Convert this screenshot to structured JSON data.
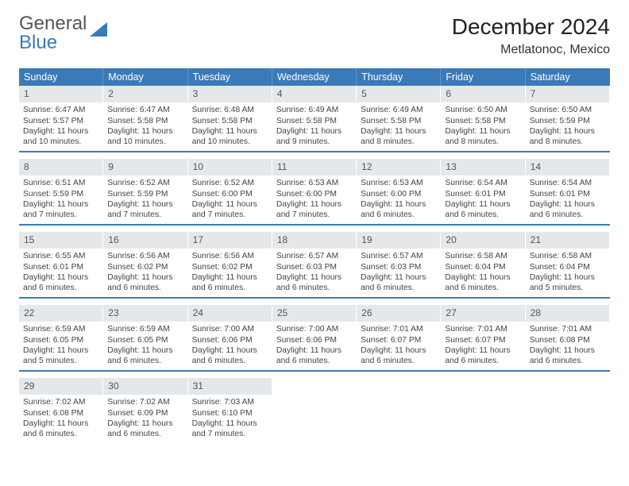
{
  "brand": {
    "line1": "General",
    "line2": "Blue"
  },
  "title": "December 2024",
  "location": "Metlatonoc, Mexico",
  "colors": {
    "header_bg": "#3a7ab8",
    "header_text": "#ffffff",
    "daynum_bg": "#e4e8eb",
    "border": "#3a7ab8",
    "body_text": "#444444"
  },
  "dow": [
    "Sunday",
    "Monday",
    "Tuesday",
    "Wednesday",
    "Thursday",
    "Friday",
    "Saturday"
  ],
  "layout": {
    "columns": 7,
    "rows": 5
  },
  "days": [
    {
      "n": "1",
      "sr": "6:47 AM",
      "ss": "5:57 PM",
      "dl": "11 hours and 10 minutes."
    },
    {
      "n": "2",
      "sr": "6:47 AM",
      "ss": "5:58 PM",
      "dl": "11 hours and 10 minutes."
    },
    {
      "n": "3",
      "sr": "6:48 AM",
      "ss": "5:58 PM",
      "dl": "11 hours and 10 minutes."
    },
    {
      "n": "4",
      "sr": "6:49 AM",
      "ss": "5:58 PM",
      "dl": "11 hours and 9 minutes."
    },
    {
      "n": "5",
      "sr": "6:49 AM",
      "ss": "5:58 PM",
      "dl": "11 hours and 8 minutes."
    },
    {
      "n": "6",
      "sr": "6:50 AM",
      "ss": "5:58 PM",
      "dl": "11 hours and 8 minutes."
    },
    {
      "n": "7",
      "sr": "6:50 AM",
      "ss": "5:59 PM",
      "dl": "11 hours and 8 minutes."
    },
    {
      "n": "8",
      "sr": "6:51 AM",
      "ss": "5:59 PM",
      "dl": "11 hours and 7 minutes."
    },
    {
      "n": "9",
      "sr": "6:52 AM",
      "ss": "5:59 PM",
      "dl": "11 hours and 7 minutes."
    },
    {
      "n": "10",
      "sr": "6:52 AM",
      "ss": "6:00 PM",
      "dl": "11 hours and 7 minutes."
    },
    {
      "n": "11",
      "sr": "6:53 AM",
      "ss": "6:00 PM",
      "dl": "11 hours and 7 minutes."
    },
    {
      "n": "12",
      "sr": "6:53 AM",
      "ss": "6:00 PM",
      "dl": "11 hours and 6 minutes."
    },
    {
      "n": "13",
      "sr": "6:54 AM",
      "ss": "6:01 PM",
      "dl": "11 hours and 6 minutes."
    },
    {
      "n": "14",
      "sr": "6:54 AM",
      "ss": "6:01 PM",
      "dl": "11 hours and 6 minutes."
    },
    {
      "n": "15",
      "sr": "6:55 AM",
      "ss": "6:01 PM",
      "dl": "11 hours and 6 minutes."
    },
    {
      "n": "16",
      "sr": "6:56 AM",
      "ss": "6:02 PM",
      "dl": "11 hours and 6 minutes."
    },
    {
      "n": "17",
      "sr": "6:56 AM",
      "ss": "6:02 PM",
      "dl": "11 hours and 6 minutes."
    },
    {
      "n": "18",
      "sr": "6:57 AM",
      "ss": "6:03 PM",
      "dl": "11 hours and 6 minutes."
    },
    {
      "n": "19",
      "sr": "6:57 AM",
      "ss": "6:03 PM",
      "dl": "11 hours and 6 minutes."
    },
    {
      "n": "20",
      "sr": "6:58 AM",
      "ss": "6:04 PM",
      "dl": "11 hours and 6 minutes."
    },
    {
      "n": "21",
      "sr": "6:58 AM",
      "ss": "6:04 PM",
      "dl": "11 hours and 5 minutes."
    },
    {
      "n": "22",
      "sr": "6:59 AM",
      "ss": "6:05 PM",
      "dl": "11 hours and 5 minutes."
    },
    {
      "n": "23",
      "sr": "6:59 AM",
      "ss": "6:05 PM",
      "dl": "11 hours and 6 minutes."
    },
    {
      "n": "24",
      "sr": "7:00 AM",
      "ss": "6:06 PM",
      "dl": "11 hours and 6 minutes."
    },
    {
      "n": "25",
      "sr": "7:00 AM",
      "ss": "6:06 PM",
      "dl": "11 hours and 6 minutes."
    },
    {
      "n": "26",
      "sr": "7:01 AM",
      "ss": "6:07 PM",
      "dl": "11 hours and 6 minutes."
    },
    {
      "n": "27",
      "sr": "7:01 AM",
      "ss": "6:07 PM",
      "dl": "11 hours and 6 minutes."
    },
    {
      "n": "28",
      "sr": "7:01 AM",
      "ss": "6:08 PM",
      "dl": "11 hours and 6 minutes."
    },
    {
      "n": "29",
      "sr": "7:02 AM",
      "ss": "6:08 PM",
      "dl": "11 hours and 6 minutes."
    },
    {
      "n": "30",
      "sr": "7:02 AM",
      "ss": "6:09 PM",
      "dl": "11 hours and 6 minutes."
    },
    {
      "n": "31",
      "sr": "7:03 AM",
      "ss": "6:10 PM",
      "dl": "11 hours and 7 minutes."
    }
  ],
  "labels": {
    "sunrise": "Sunrise:",
    "sunset": "Sunset:",
    "daylight": "Daylight:"
  }
}
